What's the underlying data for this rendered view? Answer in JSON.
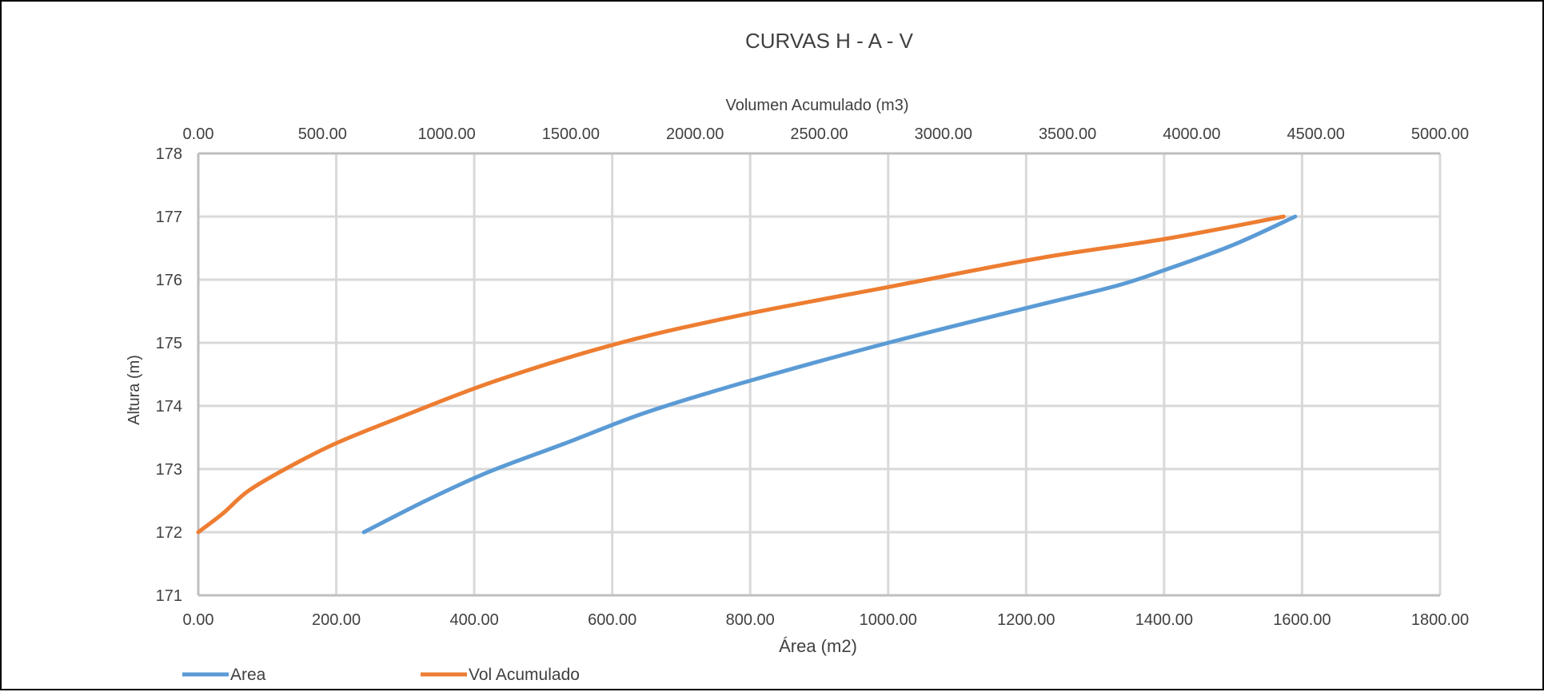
{
  "chart_data": {
    "type": "line",
    "title": "CURVAS  H - A - V",
    "xlabel": "Área (m2)",
    "x2label": "Volumen Acumulado (m3)",
    "ylabel": "Altura (m)",
    "xlim": [
      0,
      1800
    ],
    "x2lim": [
      0,
      5000
    ],
    "ylim": [
      171,
      178
    ],
    "x_ticks": [
      "0.00",
      "200.00",
      "400.00",
      "600.00",
      "800.00",
      "1000.00",
      "1200.00",
      "1400.00",
      "1600.00",
      "1800.00"
    ],
    "x2_ticks": [
      "0.00",
      "500.00",
      "1000.00",
      "1500.00",
      "2000.00",
      "2500.00",
      "3000.00",
      "3500.00",
      "4000.00",
      "4500.00",
      "5000.00"
    ],
    "y_ticks": [
      "171",
      "172",
      "173",
      "174",
      "175",
      "176",
      "177",
      "178"
    ],
    "grid": true,
    "legend_position": "bottom-left",
    "series": [
      {
        "name": "Area",
        "axis": "bottom",
        "color": "#5B9BD5",
        "points": [
          {
            "x": 240,
            "y": 172.0
          },
          {
            "x": 330,
            "y": 172.5
          },
          {
            "x": 420,
            "y": 172.95
          },
          {
            "x": 530,
            "y": 173.4
          },
          {
            "x": 650,
            "y": 173.9
          },
          {
            "x": 800,
            "y": 174.4
          },
          {
            "x": 1000,
            "y": 175.0
          },
          {
            "x": 1200,
            "y": 175.55
          },
          {
            "x": 1330,
            "y": 175.9
          },
          {
            "x": 1400,
            "y": 176.15
          },
          {
            "x": 1500,
            "y": 176.55
          },
          {
            "x": 1590,
            "y": 177.0
          }
        ]
      },
      {
        "name": "Vol Acumulado",
        "axis": "top",
        "color": "#ED7D31",
        "points": [
          {
            "x": 0,
            "y": 172.0
          },
          {
            "x": 100,
            "y": 172.3
          },
          {
            "x": 200,
            "y": 172.65
          },
          {
            "x": 350,
            "y": 173.0
          },
          {
            "x": 550,
            "y": 173.4
          },
          {
            "x": 800,
            "y": 173.8
          },
          {
            "x": 1200,
            "y": 174.4
          },
          {
            "x": 1700,
            "y": 175.0
          },
          {
            "x": 2200,
            "y": 175.45
          },
          {
            "x": 2800,
            "y": 175.9
          },
          {
            "x": 3400,
            "y": 176.35
          },
          {
            "x": 3900,
            "y": 176.65
          },
          {
            "x": 4370,
            "y": 177.0
          }
        ]
      }
    ]
  }
}
